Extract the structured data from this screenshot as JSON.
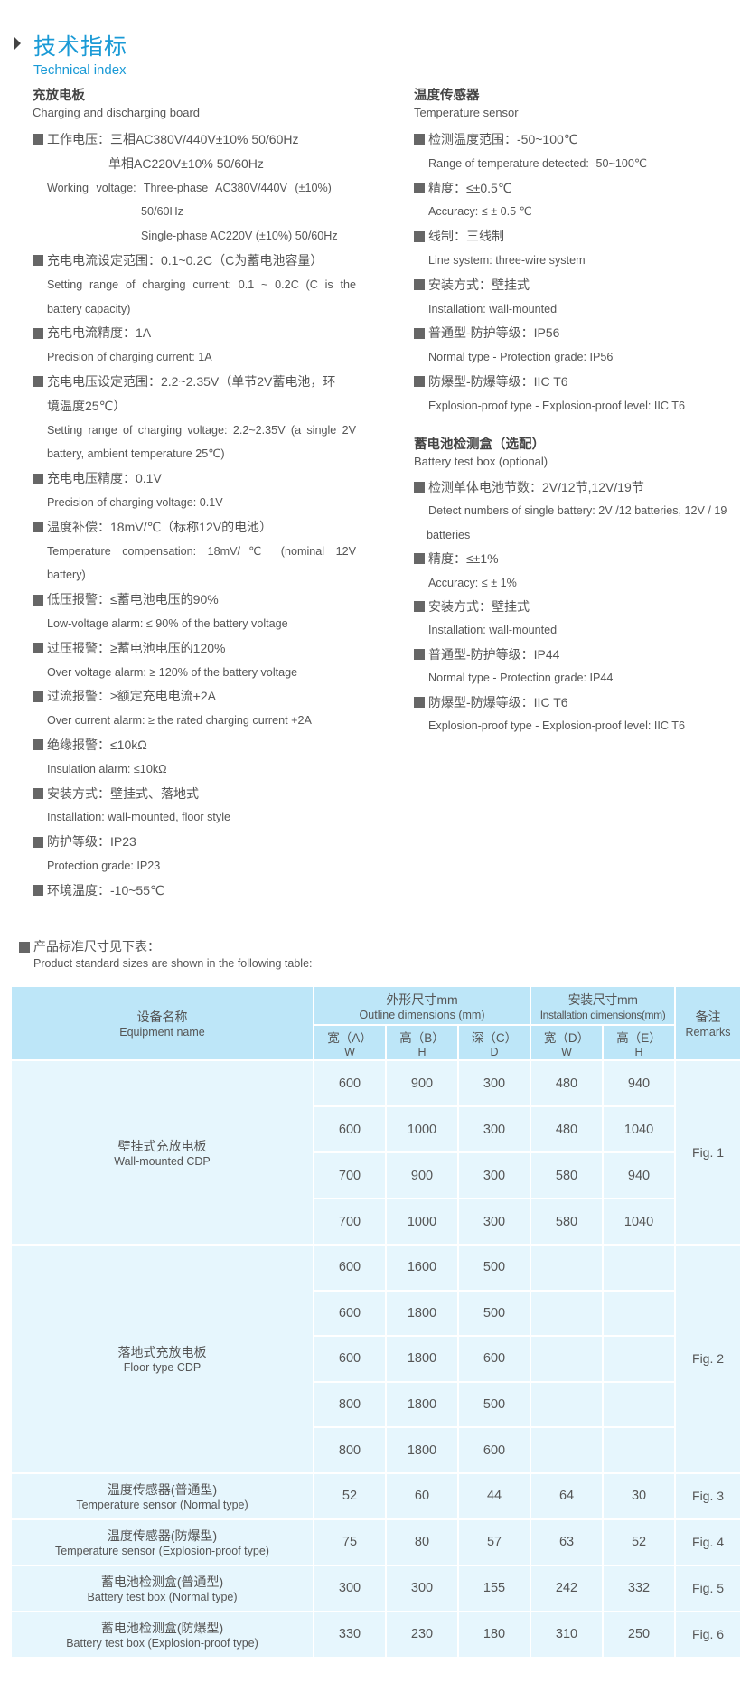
{
  "header": {
    "title": "技术指标",
    "subtitle": "Technical index"
  },
  "left": {
    "title_cn": "充放电板",
    "title_en": "Charging and discharging board",
    "lines": [
      {
        "t": "b",
        "text": "工作电压：三相AC380V/440V±10%  50/60Hz"
      },
      {
        "t": "cn2",
        "text": "单相AC220V±10%   50/60Hz"
      },
      {
        "t": "en",
        "text": "Working voltage:  Three-phase  AC380V/440V  (±10%)"
      },
      {
        "t": "en3",
        "text": "50/60Hz"
      },
      {
        "t": "en3",
        "text": "Single-phase AC220V (±10%) 50/60Hz"
      },
      {
        "t": "b",
        "text": "充电电流设定范围：0.1~0.2C（C为蓄电池容量）"
      },
      {
        "t": "enj",
        "text": "Setting range of charging current: 0.1 ~ 0.2C (C is the"
      },
      {
        "t": "en",
        "text": "battery capacity)"
      },
      {
        "t": "b",
        "text": "充电电流精度：1A"
      },
      {
        "t": "en",
        "text": "Precision of charging current: 1A"
      },
      {
        "t": "b",
        "text": "充电电压设定范围：2.2~2.35V（单节2V蓄电池，环"
      },
      {
        "t": "cn1",
        "text": "境温度25℃）"
      },
      {
        "t": "enj",
        "text": "Setting range of charging voltage: 2.2~2.35V (a single 2V"
      },
      {
        "t": "en",
        "text": "battery, ambient temperature 25℃)"
      },
      {
        "t": "b",
        "text": "充电电压精度：0.1V"
      },
      {
        "t": "en",
        "text": "Precision of charging voltage: 0.1V"
      },
      {
        "t": "b",
        "text": "温度补偿：18mV/℃（标称12V的电池）"
      },
      {
        "t": "enj",
        "text": "Temperature compensation: 18mV/℃ (nominal 12V"
      },
      {
        "t": "en",
        "text": "battery)"
      },
      {
        "t": "b",
        "text": "低压报警：≤蓄电池电压的90%"
      },
      {
        "t": "en",
        "text": "Low-voltage alarm: ≤ 90% of the battery voltage"
      },
      {
        "t": "b",
        "text": "过压报警：≥蓄电池电压的120%"
      },
      {
        "t": "en",
        "text": "Over voltage alarm: ≥ 120% of the battery voltage"
      },
      {
        "t": "b",
        "text": "过流报警：≥额定充电电流+2A"
      },
      {
        "t": "en",
        "text": "Over current alarm: ≥ the rated charging current +2A"
      },
      {
        "t": "b",
        "text": "绝缘报警：≤10kΩ"
      },
      {
        "t": "en",
        "text": "Insulation alarm: ≤10kΩ"
      },
      {
        "t": "b",
        "text": "安装方式：壁挂式、落地式"
      },
      {
        "t": "en",
        "text": "Installation: wall-mounted, floor style"
      },
      {
        "t": "b",
        "text": "防护等级：IP23"
      },
      {
        "t": "en",
        "text": "Protection grade: IP23"
      },
      {
        "t": "b",
        "text": "环境温度：-10~55℃"
      }
    ]
  },
  "right_temp": {
    "title_cn": "温度传感器",
    "title_en": "Temperature sensor",
    "lines": [
      {
        "t": "b",
        "text": "检测温度范围：-50~100℃"
      },
      {
        "t": "en",
        "text": "Range of temperature detected: -50~100℃"
      },
      {
        "t": "b",
        "text": "精度：≤±0.5℃"
      },
      {
        "t": "en",
        "text": "Accuracy: ≤ ± 0.5 ℃"
      },
      {
        "t": "b",
        "text": "线制：三线制"
      },
      {
        "t": "en",
        "text": "Line system: three-wire system"
      },
      {
        "t": "b",
        "text": "安装方式：壁挂式"
      },
      {
        "t": "en",
        "text": "Installation: wall-mounted"
      },
      {
        "t": "b",
        "text": "普通型-防护等级：IP56"
      },
      {
        "t": "en",
        "text": "Normal type - Protection grade: IP56"
      },
      {
        "t": "b",
        "text": "防爆型-防爆等级：IIC T6"
      },
      {
        "t": "en",
        "text": "Explosion-proof type - Explosion-proof level: IIC T6"
      }
    ]
  },
  "right_battery": {
    "title_cn": "蓄电池检测盒（选配）",
    "title_en": "Battery test box (optional)",
    "lines": [
      {
        "t": "b",
        "text": "检测单体电池节数：2V/12节,12V/19节"
      },
      {
        "t": "en",
        "text": "Detect numbers of single battery: 2V /12 batteries, 12V / 19"
      },
      {
        "t": "enw",
        "text": "batteries"
      },
      {
        "t": "b",
        "text": "精度：≤±1%"
      },
      {
        "t": "en",
        "text": "Accuracy: ≤ ± 1%"
      },
      {
        "t": "b",
        "text": "安装方式：壁挂式"
      },
      {
        "t": "en",
        "text": "Installation: wall-mounted"
      },
      {
        "t": "b",
        "text": "普通型-防护等级：IP44"
      },
      {
        "t": "en",
        "text": "Normal type - Protection grade: IP44"
      },
      {
        "t": "b",
        "text": "防爆型-防爆等级：IIC T6"
      },
      {
        "t": "en",
        "text": "Explosion-proof type - Explosion-proof level: IIC T6"
      }
    ]
  },
  "sizes": {
    "intro_cn": "产品标准尺寸见下表：",
    "intro_en": "Product standard sizes are shown in the following table:",
    "head": {
      "name_cn": "设备名称",
      "name_en": "Equipment name",
      "outline_cn": "外形尺寸mm",
      "outline_en": "Outline dimensions  (mm)",
      "install_cn": "安装尺寸mm",
      "install_en": "Installation dimensions(mm)",
      "remarks_cn": "备注",
      "remarks_en": "Remarks",
      "cols": [
        {
          "cn": "宽（A）",
          "en": "W"
        },
        {
          "cn": "高（B）",
          "en": "H"
        },
        {
          "cn": "深（C）",
          "en": "D"
        },
        {
          "cn": "宽（D）",
          "en": "W"
        },
        {
          "cn": "高（E）",
          "en": "H"
        }
      ]
    },
    "groups": [
      {
        "name_cn": "壁挂式充放电板",
        "name_en": "Wall-mounted CDP",
        "remark": "Fig. 1",
        "rows": [
          [
            "600",
            "900",
            "300",
            "480",
            "940"
          ],
          [
            "600",
            "1000",
            "300",
            "480",
            "1040"
          ],
          [
            "700",
            "900",
            "300",
            "580",
            "940"
          ],
          [
            "700",
            "1000",
            "300",
            "580",
            "1040"
          ]
        ]
      },
      {
        "name_cn": "落地式充放电板",
        "name_en": "Floor type CDP",
        "remark": "Fig. 2",
        "rows": [
          [
            "600",
            "1600",
            "500",
            "",
            ""
          ],
          [
            "600",
            "1800",
            "500",
            "",
            ""
          ],
          [
            "600",
            "1800",
            "600",
            "",
            ""
          ],
          [
            "800",
            "1800",
            "500",
            "",
            ""
          ],
          [
            "800",
            "1800",
            "600",
            "",
            ""
          ]
        ]
      },
      {
        "name_cn": "温度传感器(普通型)",
        "name_en": "Temperature sensor (Normal type)",
        "remark": "Fig. 3",
        "rows": [
          [
            "52",
            "60",
            "44",
            "64",
            "30"
          ]
        ]
      },
      {
        "name_cn": "温度传感器(防爆型)",
        "name_en": "Temperature sensor (Explosion-proof type)",
        "remark": "Fig. 4",
        "rows": [
          [
            "75",
            "80",
            "57",
            "63",
            "52"
          ]
        ]
      },
      {
        "name_cn": "蓄电池检测盒(普通型)",
        "name_en": "Battery test box (Normal type)",
        "remark": "Fig. 5",
        "rows": [
          [
            "300",
            "300",
            "155",
            "242",
            "332"
          ]
        ]
      },
      {
        "name_cn": "蓄电池检测盒(防爆型)",
        "name_en": "Battery test box (Explosion-proof type)",
        "remark": "Fig. 6",
        "rows": [
          [
            "330",
            "230",
            "180",
            "310",
            "250"
          ]
        ]
      }
    ]
  },
  "colors": {
    "accent": "#1a9ad6",
    "table_header": "#bde6f8",
    "table_body": "#e6f6fd"
  }
}
